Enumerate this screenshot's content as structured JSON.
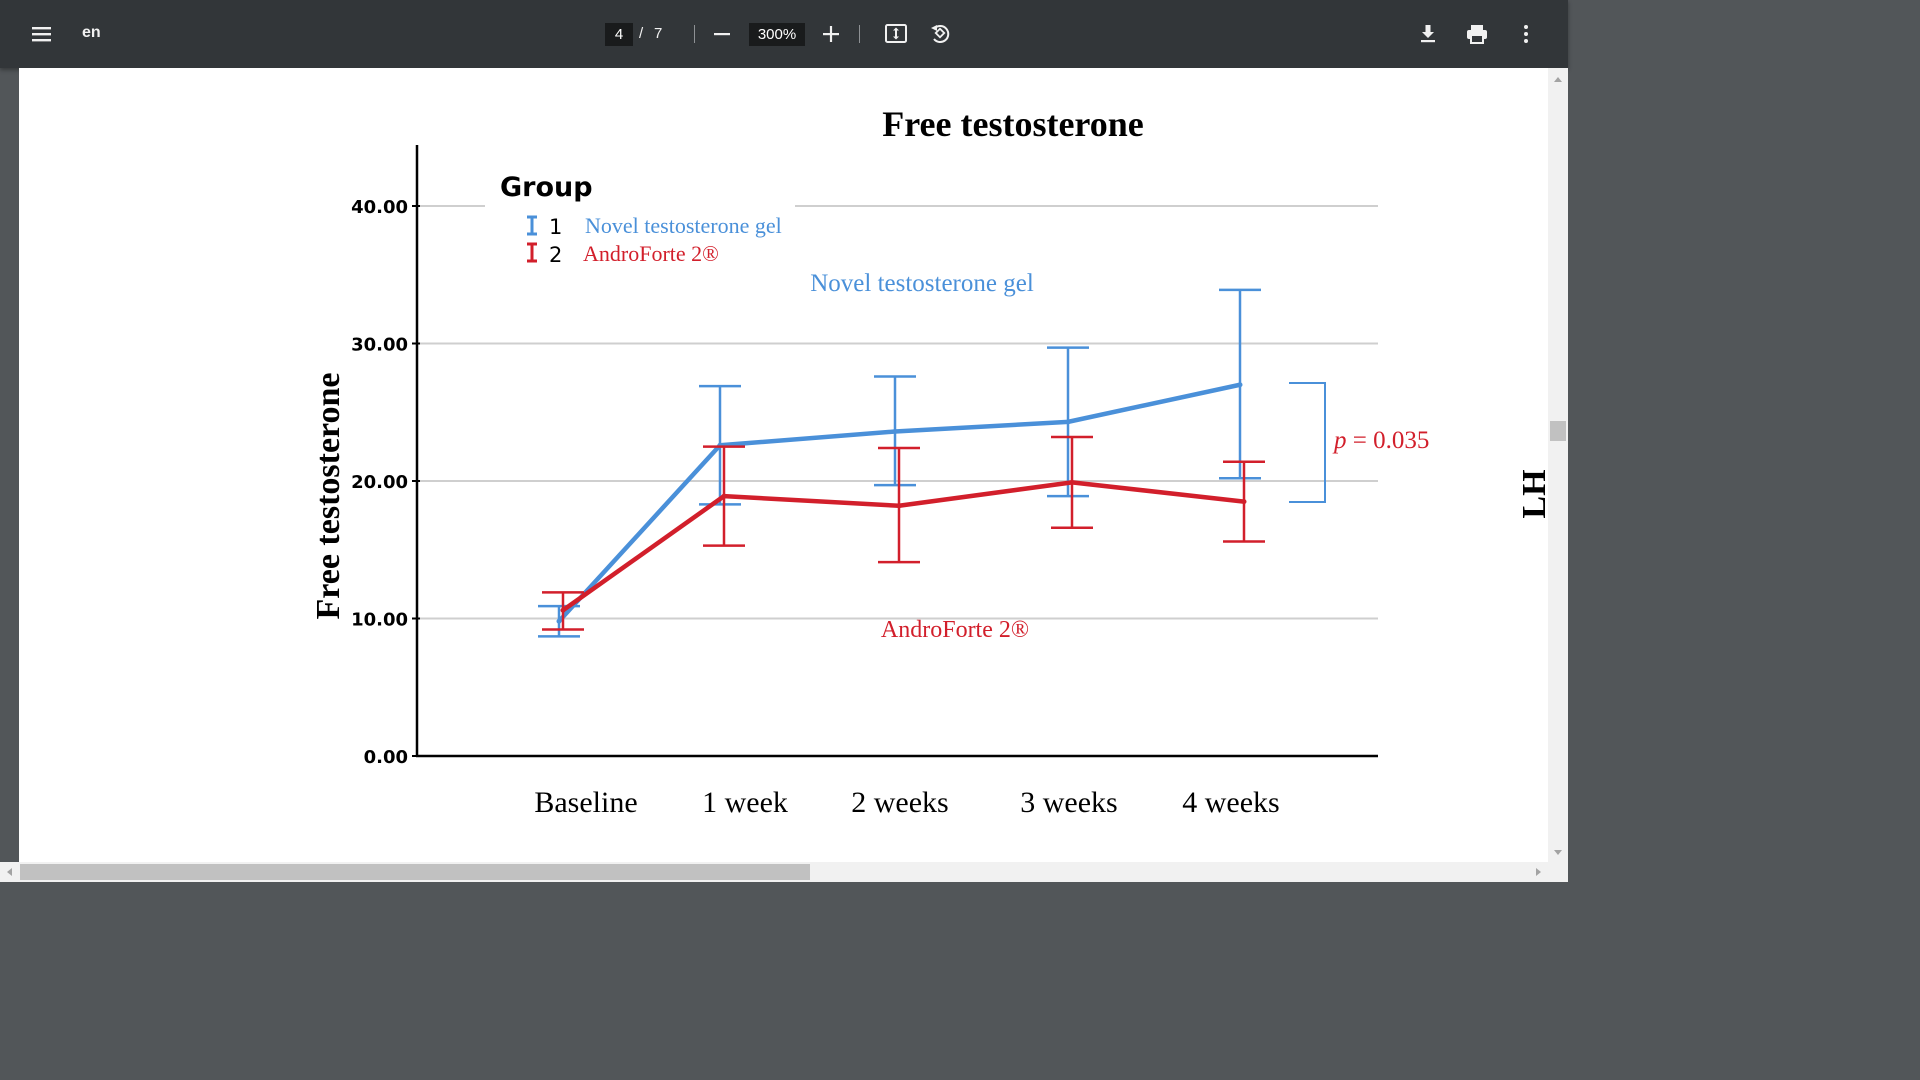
{
  "toolbar": {
    "doc_title": "en",
    "current_page": "4",
    "page_separator": "/",
    "total_pages": "7",
    "zoom": "300%",
    "icons": [
      "menu-icon",
      "zoom-out-icon",
      "zoom-in-icon",
      "fit-page-icon",
      "rotate-icon",
      "download-icon",
      "print-icon",
      "more-icon"
    ]
  },
  "side_label": "LH",
  "chart_data": {
    "type": "line",
    "title": "Free testosterone",
    "ylabel": "Free testosterone",
    "xlabel": "",
    "categories": [
      "Baseline",
      "1 week",
      "2 weeks",
      "3 weeks",
      "4 weeks"
    ],
    "ylim": [
      0,
      40
    ],
    "yticks": [
      "0.00",
      "10.00",
      "20.00",
      "30.00",
      "40.00"
    ],
    "grid": true,
    "legend": {
      "title": "Group",
      "placement": "top-left",
      "items": [
        {
          "num": "1",
          "label": "Novel testosterone gel"
        },
        {
          "num": "2",
          "label": "AndroForte 2®"
        }
      ]
    },
    "series": [
      {
        "name": "Novel testosterone gel",
        "color": "#4a90d9",
        "values": [
          9.8,
          22.6,
          23.6,
          24.3,
          27.0
        ],
        "error_low": [
          8.7,
          18.3,
          19.7,
          18.9,
          20.2
        ],
        "error_high": [
          10.9,
          26.9,
          27.6,
          29.7,
          33.9
        ]
      },
      {
        "name": "AndroForte 2®",
        "color": "#d21f2b",
        "values": [
          10.6,
          18.9,
          18.2,
          19.9,
          18.5
        ],
        "error_low": [
          9.2,
          15.3,
          14.1,
          16.6,
          15.6
        ],
        "error_high": [
          11.9,
          22.5,
          22.4,
          23.2,
          21.4
        ]
      }
    ],
    "annotations": {
      "series1_label": "Novel testosterone gel",
      "series2_label": "AndroForte 2®",
      "p_symbol": "p",
      "p_rest": " = 0.035"
    }
  }
}
